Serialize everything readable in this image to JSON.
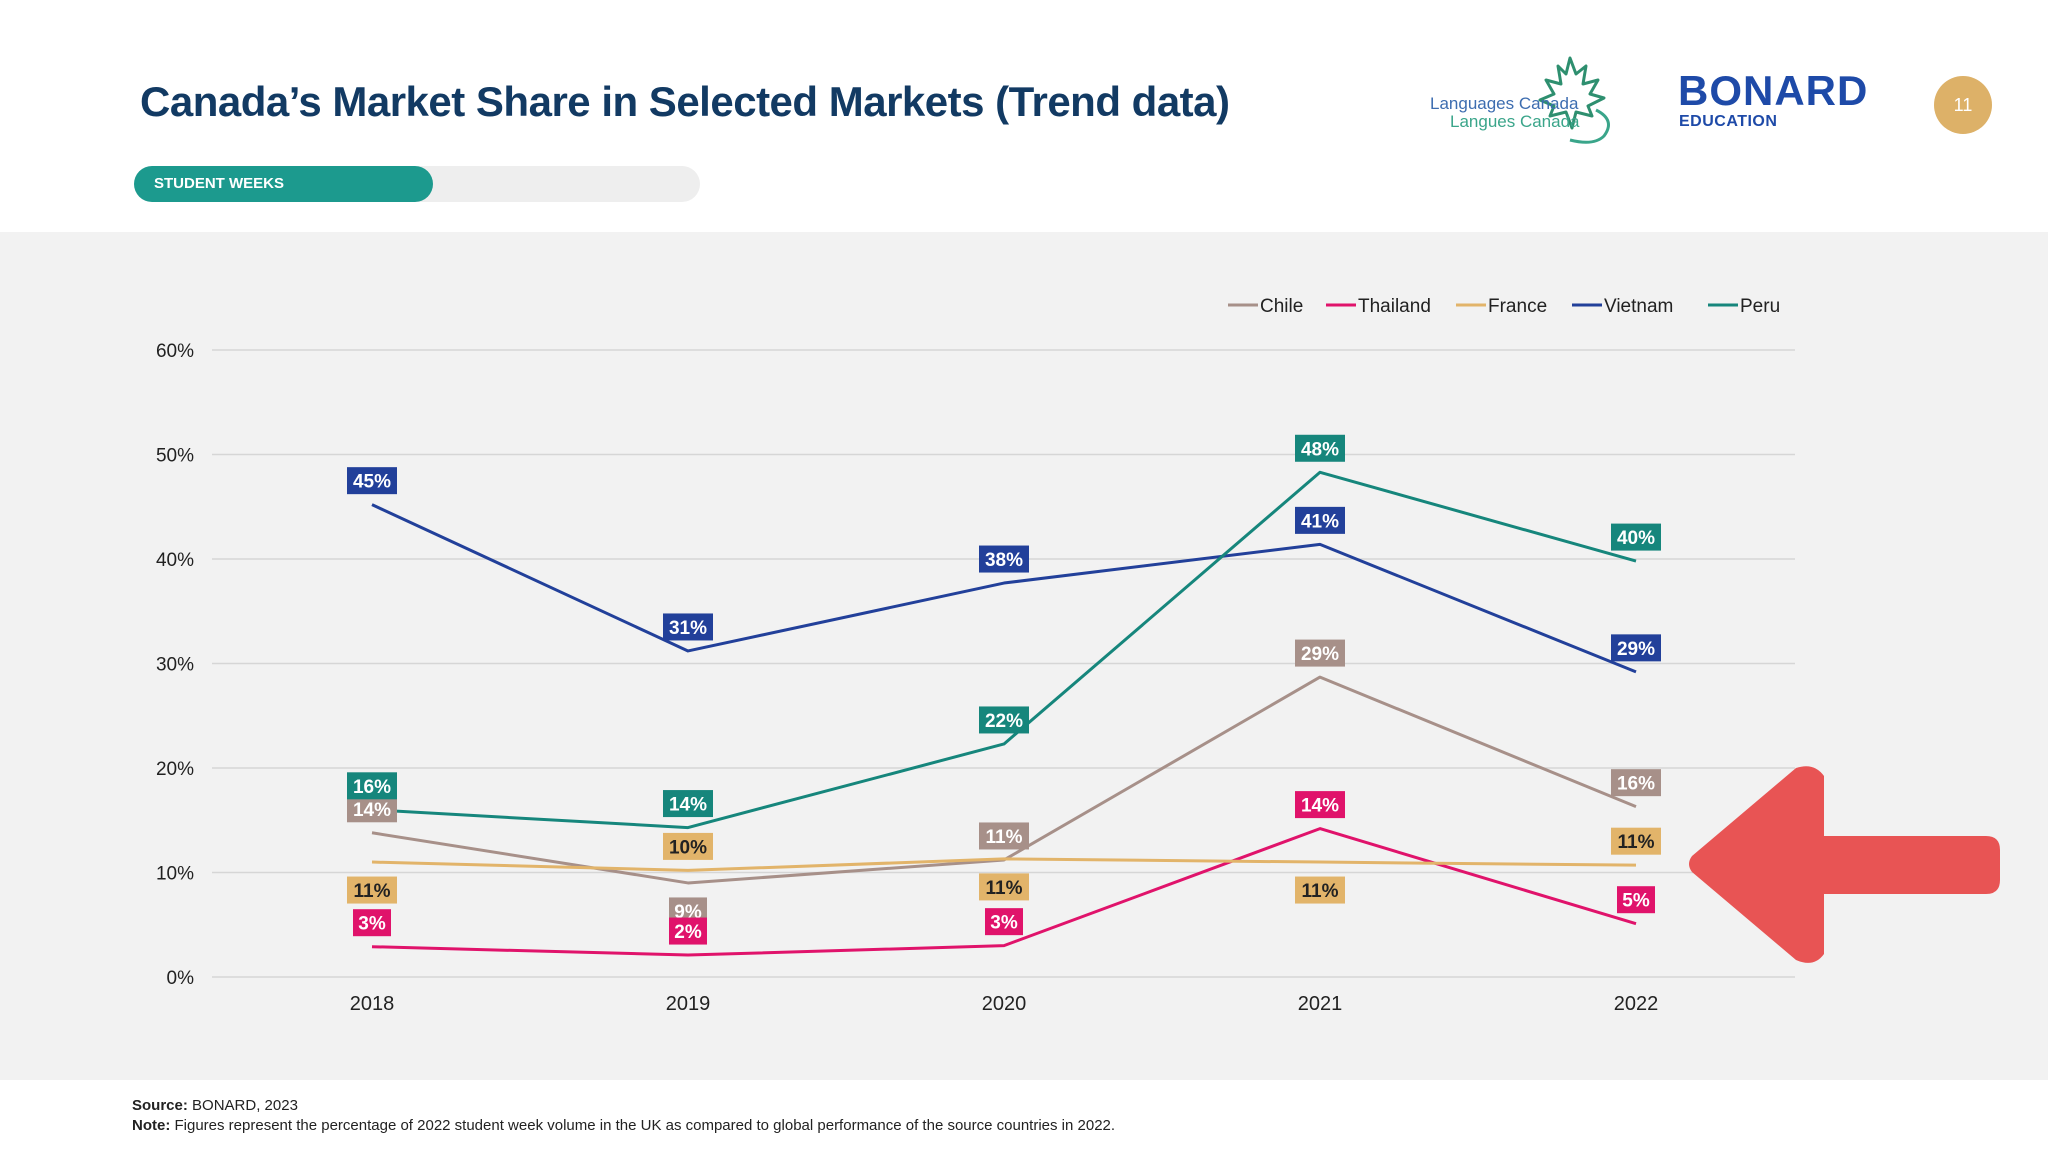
{
  "header": {
    "title": "Canada’s Market Share in Selected Markets (Trend data)",
    "logo_languages_canada_line1": "Languages Canada",
    "logo_languages_canada_line2": "Langues Canada",
    "logo_bonard": "BONARD",
    "logo_bonard_sub": "EDUCATION",
    "page_number": "11"
  },
  "tabs": {
    "active_label": "STUDENT WEEKS",
    "active_color": "#1c9a8e"
  },
  "chart_data": {
    "type": "line",
    "x": [
      "2018",
      "2019",
      "2020",
      "2021",
      "2022"
    ],
    "ylim": [
      0,
      60
    ],
    "yticks": [
      0,
      10,
      20,
      30,
      40,
      50,
      60
    ],
    "ytick_labels": [
      "0%",
      "10%",
      "20%",
      "30%",
      "40%",
      "50%",
      "60%"
    ],
    "grid": true,
    "legend_position": "top-right",
    "series": [
      {
        "name": "Chile",
        "color": "#a79089",
        "values": [
          13.8,
          9.0,
          11.2,
          28.7,
          16.3
        ],
        "labels": [
          "14%",
          "9%",
          "11%",
          "29%",
          "16%"
        ],
        "label_pos": [
          "above",
          "below",
          "above",
          "above",
          "above"
        ]
      },
      {
        "name": "Thailand",
        "color": "#e0136b",
        "values": [
          2.9,
          2.1,
          3.0,
          14.2,
          5.1
        ],
        "labels": [
          "3%",
          "2%",
          "3%",
          "14%",
          "5%"
        ],
        "label_pos": [
          "above",
          "above",
          "above",
          "above",
          "above"
        ]
      },
      {
        "name": "France",
        "color": "#e2b46a",
        "values": [
          11.0,
          10.2,
          11.3,
          11.0,
          10.7
        ],
        "labels": [
          "11%",
          "10%",
          "11%",
          "11%",
          "11%"
        ],
        "label_pos": [
          "below",
          "above",
          "below",
          "below",
          "above"
        ]
      },
      {
        "name": "Vietnam",
        "color": "#22409a",
        "values": [
          45.2,
          31.2,
          37.7,
          41.4,
          29.2
        ],
        "labels": [
          "45%",
          "31%",
          "38%",
          "41%",
          "29%"
        ],
        "label_pos": [
          "above",
          "above",
          "above",
          "above",
          "above"
        ]
      },
      {
        "name": "Peru",
        "color": "#16867c",
        "values": [
          16.0,
          14.3,
          22.3,
          48.3,
          39.8
        ],
        "labels": [
          "16%",
          "14%",
          "22%",
          "48%",
          "40%"
        ],
        "label_pos": [
          "above",
          "above",
          "above",
          "above",
          "above"
        ]
      }
    ]
  },
  "annotation": {
    "arrow_color": "#e85454",
    "arrow_direction": "left"
  },
  "footer": {
    "source_label": "Source:",
    "source_text": " BONARD, 2023",
    "note_label": "Note:",
    "note_text": " Figures represent the percentage of 2022 student week volume in the UK as compared to global performance of the source countries in 2022."
  }
}
